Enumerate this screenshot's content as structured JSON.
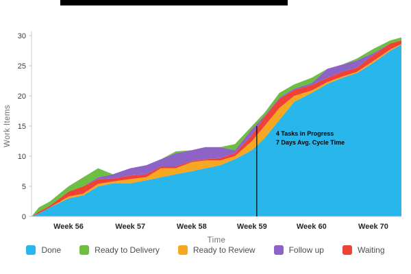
{
  "page": {
    "background": "#ffffff",
    "top_bar_color": "#000000"
  },
  "chart_data": {
    "type": "area",
    "stacked": true,
    "title": "",
    "xlabel": "Time",
    "ylabel": "Work Items",
    "ylim": [
      0,
      30
    ],
    "yticks": [
      0,
      5,
      10,
      15,
      20,
      25,
      30
    ],
    "grid": false,
    "legend_position": "bottom",
    "xticks": [
      {
        "x": 0.1,
        "label": "Week 56"
      },
      {
        "x": 0.267,
        "label": "Week 57"
      },
      {
        "x": 0.433,
        "label": "Week 58"
      },
      {
        "x": 0.596,
        "label": "Week 59"
      },
      {
        "x": 0.757,
        "label": "Week 60"
      },
      {
        "x": 0.924,
        "label": "Week 70"
      }
    ],
    "x": [
      0,
      0.02,
      0.05,
      0.1,
      0.14,
      0.18,
      0.22,
      0.267,
      0.31,
      0.35,
      0.39,
      0.433,
      0.47,
      0.51,
      0.55,
      0.596,
      0.63,
      0.67,
      0.71,
      0.757,
      0.8,
      0.84,
      0.88,
      0.924,
      0.97,
      1.0
    ],
    "series": [
      {
        "key": "done",
        "name": "Done",
        "color": "#29b6ea",
        "values": [
          0,
          0.5,
          1.5,
          3.0,
          3.5,
          5.0,
          5.5,
          5.5,
          6.0,
          6.5,
          7.0,
          7.5,
          8.0,
          8.5,
          9.5,
          11.0,
          13.0,
          16.0,
          19.0,
          20.5,
          22.0,
          23.0,
          23.8,
          25.5,
          27.5,
          28.5
        ]
      },
      {
        "key": "ready-to-review",
        "name": "Ready to Review",
        "color": "#f7a823",
        "values": [
          0,
          0,
          0,
          0.3,
          0.3,
          0.4,
          0.3,
          0.7,
          0.5,
          1.5,
          1.0,
          1.5,
          1.3,
          0.8,
          0.5,
          1.5,
          2.0,
          2.0,
          1.0,
          0.4,
          0.3,
          0.2,
          0.2,
          0.3,
          0.2,
          0.1
        ]
      },
      {
        "key": "waiting",
        "name": "Waiting",
        "color": "#ef4136",
        "values": [
          0,
          0.3,
          0.3,
          0.8,
          1.2,
          0.8,
          0.5,
          0.6,
          0.5,
          0.3,
          0.3,
          0.2,
          0.2,
          0.4,
          0.5,
          1.0,
          1.5,
          1.5,
          1.0,
          0.9,
          0.7,
          0.8,
          0.7,
          1.0,
          1.0,
          0.6
        ]
      },
      {
        "key": "follow-up",
        "name": "Follow up",
        "color": "#8d64c5",
        "values": [
          0,
          0,
          0,
          0,
          0,
          0.3,
          0.7,
          1.2,
          1.5,
          1.2,
          2.2,
          1.8,
          2.0,
          1.8,
          0.5,
          1.0,
          0.2,
          0.2,
          0.2,
          0.3,
          1.5,
          1.2,
          1.2,
          0.3,
          0,
          0
        ]
      },
      {
        "key": "ready-to-delivery",
        "name": "Ready to Delivery",
        "color": "#6fbe44",
        "values": [
          0,
          0.7,
          0.7,
          0.9,
          1.5,
          1.5,
          0,
          0,
          0,
          0,
          0.3,
          0,
          0,
          0,
          1.0,
          0.5,
          0.5,
          0.8,
          0.7,
          0.9,
          0,
          0,
          0.3,
          0.7,
          0.5,
          0.5
        ]
      }
    ],
    "legend": [
      {
        "label": "Done",
        "color": "#29b6ea"
      },
      {
        "label": "Ready to Delivery",
        "color": "#6fbe44"
      },
      {
        "label": "Ready to Review",
        "color": "#f7a823"
      },
      {
        "label": "Follow up",
        "color": "#8d64c5"
      },
      {
        "label": "Waiting",
        "color": "#ef4136"
      }
    ],
    "annotation": {
      "x": 0.609,
      "y_top": 15,
      "y_bottom": 0,
      "lines": [
        "4 Tasks in Progress",
        "7 Days Avg. Cycle Time"
      ],
      "color": "#000000"
    },
    "axis_color": "#c8c8c8"
  }
}
